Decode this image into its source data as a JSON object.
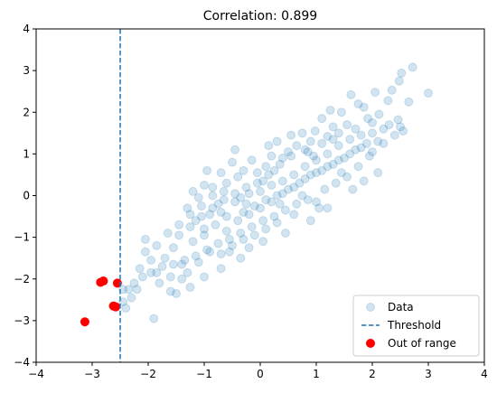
{
  "chart_data": {
    "type": "scatter",
    "title": "Correlation: 0.899",
    "xlabel": "",
    "ylabel": "",
    "xlim": [
      -4,
      4
    ],
    "ylim": [
      -4,
      4
    ],
    "xticks": [
      "−4",
      "−3",
      "−2",
      "−1",
      "0",
      "1",
      "2",
      "3",
      "4"
    ],
    "yticks": [
      "−4",
      "−3",
      "−2",
      "−1",
      "0",
      "1",
      "2",
      "3",
      "4"
    ],
    "grid": false,
    "legend_position": "lower-right",
    "threshold_x": -2.5,
    "series": [
      {
        "name": "Data",
        "kind": "scatter",
        "color": "#1f77b4",
        "points": [
          [
            2.72,
            3.08
          ],
          [
            2.52,
            2.94
          ],
          [
            2.48,
            2.75
          ],
          [
            2.35,
            2.53
          ],
          [
            2.28,
            2.28
          ],
          [
            2.05,
            2.48
          ],
          [
            3.0,
            2.46
          ],
          [
            2.65,
            2.25
          ],
          [
            2.12,
            1.95
          ],
          [
            1.92,
            1.85
          ],
          [
            1.85,
            2.12
          ],
          [
            2.46,
            1.82
          ],
          [
            2.5,
            1.65
          ],
          [
            2.2,
            1.6
          ],
          [
            1.62,
            2.42
          ],
          [
            1.75,
            2.2
          ],
          [
            1.55,
            1.7
          ],
          [
            1.45,
            2.0
          ],
          [
            1.3,
            1.65
          ],
          [
            1.2,
            1.42
          ],
          [
            1.1,
            1.85
          ],
          [
            0.98,
            1.55
          ],
          [
            0.9,
            1.3
          ],
          [
            0.85,
            1.05
          ],
          [
            0.75,
            1.5
          ],
          [
            0.65,
            1.2
          ],
          [
            0.5,
            1.05
          ],
          [
            0.4,
            0.9
          ],
          [
            0.3,
            1.3
          ],
          [
            0.2,
            0.95
          ],
          [
            0.1,
            0.7
          ],
          [
            -0.05,
            0.55
          ],
          [
            -0.15,
            0.85
          ],
          [
            -0.3,
            0.6
          ],
          [
            -0.4,
            0.45
          ],
          [
            -0.5,
            0.8
          ],
          [
            -0.6,
            0.3
          ],
          [
            -0.7,
            0.55
          ],
          [
            -0.85,
            0.2
          ],
          [
            -1.0,
            0.25
          ],
          [
            -1.1,
            -0.05
          ],
          [
            -1.2,
            0.1
          ],
          [
            -1.3,
            -0.3
          ],
          [
            -1.15,
            -0.6
          ],
          [
            -1.0,
            -0.8
          ],
          [
            -0.9,
            -0.45
          ],
          [
            -0.75,
            -0.2
          ],
          [
            -0.6,
            -0.5
          ],
          [
            -0.45,
            -0.15
          ],
          [
            -0.3,
            -0.4
          ],
          [
            -0.2,
            0.05
          ],
          [
            -0.1,
            -0.25
          ],
          [
            0.0,
            0.1
          ],
          [
            0.1,
            -0.1
          ],
          [
            0.2,
            0.25
          ],
          [
            0.3,
            0.0
          ],
          [
            0.4,
            0.35
          ],
          [
            0.5,
            0.15
          ],
          [
            0.6,
            0.5
          ],
          [
            0.7,
            0.3
          ],
          [
            0.8,
            0.7
          ],
          [
            0.9,
            0.5
          ],
          [
            1.0,
            0.85
          ],
          [
            1.1,
            0.6
          ],
          [
            1.2,
            1.0
          ],
          [
            1.3,
            0.75
          ],
          [
            1.4,
            1.2
          ],
          [
            1.5,
            0.9
          ],
          [
            1.6,
            1.35
          ],
          [
            1.7,
            1.1
          ],
          [
            1.8,
            1.45
          ],
          [
            1.9,
            1.25
          ],
          [
            2.0,
            1.5
          ],
          [
            2.1,
            1.3
          ],
          [
            1.95,
            0.95
          ],
          [
            1.75,
            0.7
          ],
          [
            1.55,
            0.45
          ],
          [
            1.35,
            0.3
          ],
          [
            1.15,
            0.15
          ],
          [
            1.0,
            -0.15
          ],
          [
            1.05,
            -0.3
          ],
          [
            0.85,
            -0.1
          ],
          [
            0.65,
            -0.2
          ],
          [
            0.45,
            -0.35
          ],
          [
            0.25,
            -0.5
          ],
          [
            0.05,
            -0.6
          ],
          [
            -0.15,
            -0.75
          ],
          [
            -0.35,
            -0.9
          ],
          [
            -0.55,
            -1.05
          ],
          [
            -0.75,
            -1.15
          ],
          [
            -0.95,
            -1.3
          ],
          [
            -1.15,
            -1.45
          ],
          [
            -1.35,
            -1.55
          ],
          [
            -1.55,
            -1.65
          ],
          [
            -1.75,
            -1.7
          ],
          [
            -1.95,
            -1.85
          ],
          [
            -2.1,
            -1.95
          ],
          [
            -2.25,
            -2.1
          ],
          [
            -2.35,
            -2.25
          ],
          [
            -2.45,
            -2.55
          ],
          [
            -2.4,
            -2.7
          ],
          [
            -2.3,
            -2.45
          ],
          [
            -2.2,
            -2.25
          ],
          [
            -1.9,
            -2.95
          ],
          [
            -1.8,
            -2.1
          ],
          [
            -1.6,
            -2.3
          ],
          [
            -1.4,
            -2.0
          ],
          [
            -1.3,
            -1.85
          ],
          [
            -1.1,
            -1.6
          ],
          [
            -0.9,
            -1.35
          ],
          [
            -0.7,
            -1.4
          ],
          [
            -0.5,
            -1.2
          ],
          [
            -0.3,
            -1.05
          ],
          [
            -0.1,
            -0.95
          ],
          [
            0.1,
            -0.8
          ],
          [
            0.3,
            -0.65
          ],
          [
            -2.05,
            -1.05
          ],
          [
            -1.85,
            -1.2
          ],
          [
            -1.65,
            -0.9
          ],
          [
            -1.45,
            -0.7
          ],
          [
            -1.25,
            -0.45
          ],
          [
            -1.05,
            -0.25
          ],
          [
            -0.85,
            0.0
          ],
          [
            -0.65,
            0.1
          ],
          [
            -1.55,
            -1.25
          ],
          [
            -1.7,
            -1.5
          ],
          [
            -1.95,
            -1.55
          ],
          [
            -2.05,
            -1.35
          ],
          [
            -1.85,
            -1.85
          ],
          [
            -1.6,
            -1.95
          ],
          [
            -1.4,
            -1.65
          ],
          [
            -1.2,
            -1.1
          ],
          [
            -1.0,
            -0.95
          ],
          [
            -0.8,
            -0.7
          ],
          [
            -0.6,
            -0.85
          ],
          [
            -0.4,
            -0.6
          ],
          [
            -0.2,
            -0.45
          ],
          [
            0.0,
            -0.3
          ],
          [
            0.2,
            -0.15
          ],
          [
            0.4,
            0.05
          ],
          [
            0.6,
            0.2
          ],
          [
            0.8,
            0.4
          ],
          [
            1.0,
            0.55
          ],
          [
            1.2,
            0.7
          ],
          [
            1.4,
            0.85
          ],
          [
            1.6,
            1.0
          ],
          [
            1.8,
            1.15
          ],
          [
            2.0,
            1.05
          ],
          [
            2.2,
            1.25
          ],
          [
            2.4,
            1.45
          ],
          [
            2.55,
            1.55
          ],
          [
            2.3,
            1.7
          ],
          [
            2.0,
            1.75
          ],
          [
            1.7,
            1.6
          ],
          [
            1.4,
            1.5
          ],
          [
            1.1,
            1.25
          ],
          [
            0.8,
            1.1
          ],
          [
            0.55,
            0.95
          ],
          [
            0.35,
            0.75
          ],
          [
            0.15,
            0.5
          ],
          [
            -0.05,
            0.3
          ],
          [
            -0.25,
            0.2
          ],
          [
            -0.45,
            0.05
          ],
          [
            -0.65,
            -0.1
          ],
          [
            -0.85,
            -0.3
          ],
          [
            -1.05,
            -0.5
          ],
          [
            -1.25,
            -0.75
          ],
          [
            -1.45,
            -0.95
          ],
          [
            -0.95,
            0.6
          ],
          [
            -0.45,
            1.1
          ],
          [
            0.15,
            1.2
          ],
          [
            0.55,
            1.45
          ],
          [
            1.25,
            2.05
          ],
          [
            -0.2,
            -1.25
          ],
          [
            0.45,
            -0.9
          ],
          [
            0.9,
            -0.6
          ],
          [
            1.2,
            -0.3
          ],
          [
            -1.5,
            -2.35
          ],
          [
            -1.25,
            -2.2
          ],
          [
            -0.7,
            -1.75
          ],
          [
            -0.35,
            -1.5
          ],
          [
            0.6,
            -0.45
          ],
          [
            1.65,
            0.15
          ],
          [
            2.1,
            0.55
          ],
          [
            1.85,
            0.35
          ],
          [
            -2.15,
            -1.75
          ],
          [
            -2.45,
            -2.25
          ],
          [
            -1.0,
            -1.95
          ],
          [
            -0.55,
            -1.35
          ],
          [
            0.05,
            -1.1
          ],
          [
            0.35,
            -0.2
          ],
          [
            0.75,
            0.0
          ],
          [
            1.45,
            0.55
          ],
          [
            0.25,
            0.6
          ],
          [
            -0.35,
            -0.05
          ],
          [
            -0.7,
            -0.4
          ],
          [
            0.95,
            0.95
          ],
          [
            1.3,
            1.35
          ],
          [
            0.05,
            0.35
          ],
          [
            -0.25,
            -0.2
          ]
        ]
      },
      {
        "name": "Out of range",
        "kind": "scatter",
        "color": "#ff0000",
        "points": [
          [
            -2.85,
            -2.08
          ],
          [
            -2.8,
            -2.05
          ],
          [
            -2.55,
            -2.1
          ],
          [
            -2.62,
            -2.65
          ],
          [
            -2.58,
            -2.67
          ],
          [
            -3.13,
            -3.03
          ]
        ]
      }
    ],
    "legend": [
      {
        "label": "Data",
        "kind": "marker",
        "color": "#1f77b4"
      },
      {
        "label": "Threshold",
        "kind": "dashed-line",
        "color": "#1f77b4"
      },
      {
        "label": "Out of range",
        "kind": "marker",
        "color": "#ff0000"
      }
    ]
  }
}
